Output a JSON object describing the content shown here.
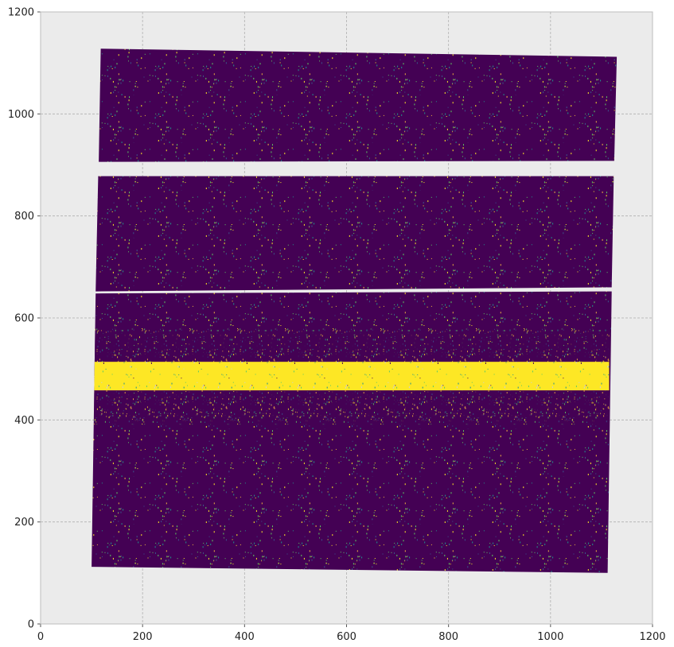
{
  "chart_data": {
    "type": "heatmap",
    "title": "",
    "xlabel": "",
    "ylabel": "",
    "xlim": [
      0,
      1200
    ],
    "ylim": [
      0,
      1200
    ],
    "xticks": [
      0,
      200,
      400,
      600,
      800,
      1000,
      1200
    ],
    "yticks": [
      0,
      200,
      400,
      600,
      800,
      1000,
      1200
    ],
    "xtick_labels": [
      "0",
      "200",
      "400",
      "600",
      "800",
      "1000",
      "1200"
    ],
    "ytick_labels": [
      "0",
      "200",
      "400",
      "600",
      "800",
      "1000",
      "1200"
    ],
    "grid": true,
    "colormap": "viridis",
    "description_of_data": "rotated detector image in three horizontal strips with a bright horizontal trace",
    "strips": [
      {
        "name": "upper-strip",
        "corners": [
          [
            118,
            1128
          ],
          [
            1130,
            1112
          ],
          [
            1125,
            908
          ],
          [
            114,
            906
          ]
        ]
      },
      {
        "name": "middle-strip",
        "corners": [
          [
            113,
            878
          ],
          [
            1124,
            878
          ],
          [
            1120,
            660
          ],
          [
            108,
            652
          ]
        ]
      },
      {
        "name": "lower-strip",
        "corners": [
          [
            108,
            648
          ],
          [
            1120,
            652
          ],
          [
            1112,
            100
          ],
          [
            100,
            112
          ]
        ]
      }
    ],
    "trace": {
      "y_center": 486,
      "half_width": 28,
      "x_start": 105,
      "x_end": 1115
    },
    "colors": {
      "background": "#ebebeb",
      "outer": "#ffffff",
      "grid": "#b0b0b0",
      "low": "#440154",
      "mid": "#21918c",
      "mid2": "#3b528b",
      "high": "#fde725",
      "high2": "#5ec962"
    }
  }
}
